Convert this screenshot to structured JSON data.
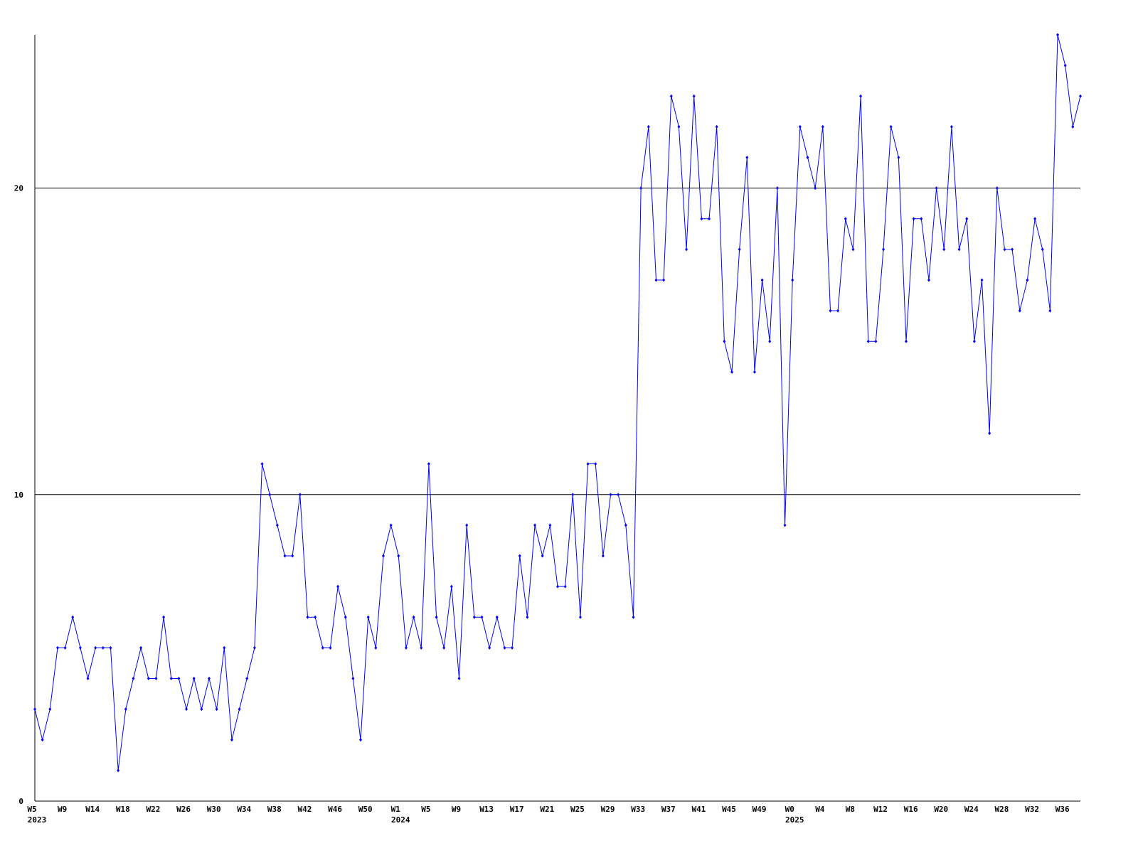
{
  "chart_data": {
    "type": "line",
    "categories": [
      "W5",
      null,
      null,
      null,
      "W9",
      null,
      null,
      null,
      "W14",
      null,
      null,
      null,
      "W18",
      null,
      null,
      null,
      "W22",
      null,
      null,
      null,
      "W26",
      null,
      null,
      null,
      "W30",
      null,
      null,
      null,
      "W34",
      null,
      null,
      null,
      "W38",
      null,
      null,
      null,
      "W42",
      null,
      null,
      null,
      "W46",
      null,
      null,
      null,
      "W50",
      null,
      null,
      null,
      "W1",
      null,
      null,
      null,
      "W5",
      null,
      null,
      null,
      "W9",
      null,
      null,
      null,
      "W13",
      null,
      null,
      null,
      "W17",
      null,
      null,
      null,
      "W21",
      null,
      null,
      null,
      "W25",
      null,
      null,
      null,
      "W29",
      null,
      null,
      null,
      "W33",
      null,
      null,
      null,
      "W37",
      null,
      null,
      null,
      "W41",
      null,
      null,
      null,
      "W45",
      null,
      null,
      null,
      "W49",
      null,
      null,
      null,
      "W0",
      null,
      null,
      null,
      "W4",
      null,
      null,
      null,
      "W8",
      null,
      null,
      null,
      "W12",
      null,
      null,
      null,
      "W16",
      null,
      null,
      null,
      "W20",
      null,
      null,
      null,
      "W24",
      null,
      null,
      null,
      "W28",
      null,
      null,
      null,
      "W32",
      null,
      null,
      null,
      "W36",
      null,
      null
    ],
    "year_labels": [
      "2023",
      null,
      null,
      null,
      null,
      null,
      null,
      null,
      null,
      null,
      null,
      null,
      null,
      null,
      null,
      null,
      null,
      null,
      null,
      null,
      null,
      null,
      null,
      null,
      null,
      null,
      null,
      null,
      null,
      null,
      null,
      null,
      null,
      null,
      null,
      null,
      null,
      null,
      null,
      null,
      null,
      null,
      null,
      null,
      null,
      null,
      null,
      null,
      "2024",
      null,
      null,
      null,
      null,
      null,
      null,
      null,
      null,
      null,
      null,
      null,
      null,
      null,
      null,
      null,
      null,
      null,
      null,
      null,
      null,
      null,
      null,
      null,
      null,
      null,
      null,
      null,
      null,
      null,
      null,
      null,
      null,
      null,
      null,
      null,
      null,
      null,
      null,
      null,
      null,
      null,
      null,
      null,
      null,
      null,
      null,
      null,
      null,
      null,
      null,
      null,
      "2025",
      null,
      null,
      null,
      null,
      null,
      null,
      null,
      null,
      null,
      null,
      null,
      null,
      null,
      null,
      null,
      null,
      null,
      null,
      null,
      null,
      null,
      null,
      null,
      null,
      null,
      null,
      null,
      null,
      null,
      null,
      null,
      null,
      null,
      null,
      null,
      null,
      null,
      null
    ],
    "series": [
      {
        "color": "#0000ff",
        "values": [
          3,
          2,
          3,
          5,
          5,
          6,
          5,
          4,
          5,
          5,
          5,
          1,
          3,
          4,
          5,
          4,
          4,
          6,
          4,
          4,
          3,
          4,
          3,
          4,
          3,
          5,
          2,
          3,
          4,
          5,
          11,
          10,
          9,
          8,
          8,
          10,
          6,
          6,
          5,
          5,
          7,
          6,
          4,
          2,
          6,
          5,
          8,
          9,
          8,
          5,
          6,
          5,
          11,
          6,
          5,
          7,
          4,
          9,
          6,
          6,
          5,
          6,
          5,
          5,
          8,
          6,
          9,
          8,
          9,
          7,
          7,
          10,
          6,
          11,
          11,
          8,
          10,
          10,
          9,
          6,
          20,
          22,
          17,
          17,
          23,
          22,
          18,
          23,
          19,
          19,
          22,
          15,
          14,
          18,
          21,
          14,
          17,
          15,
          20,
          9,
          17,
          22,
          21,
          20,
          22,
          16,
          16,
          19,
          18,
          23,
          15,
          15,
          18,
          22,
          21,
          15,
          19,
          19,
          17,
          20,
          18,
          22,
          18,
          19,
          15,
          17,
          12,
          20,
          18,
          18,
          16,
          17,
          19,
          18,
          16,
          25,
          24,
          22,
          23
        ]
      }
    ],
    "ylim": [
      0,
      25
    ],
    "yticks": [
      0,
      10,
      20
    ],
    "grid": true
  }
}
